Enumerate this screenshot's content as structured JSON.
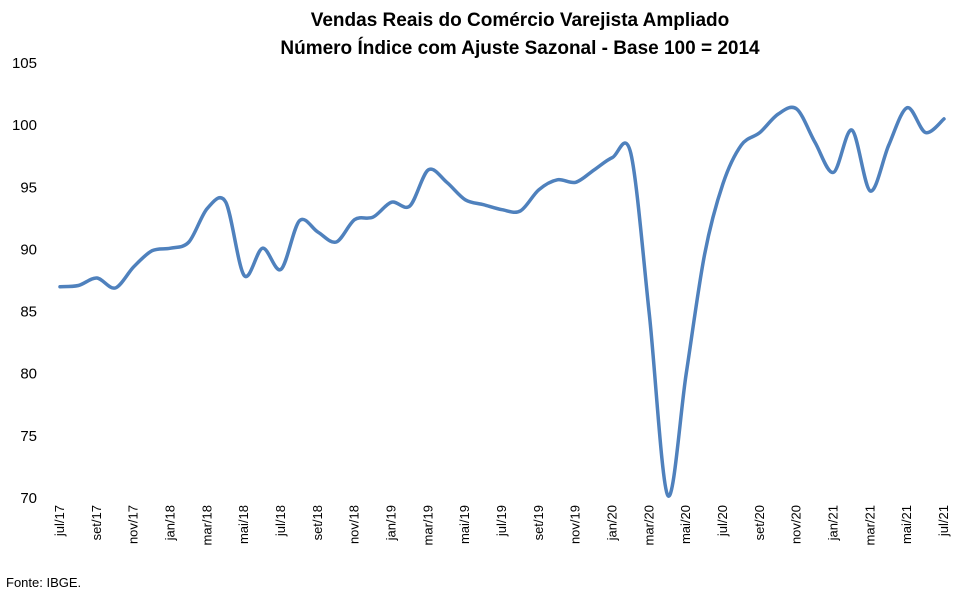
{
  "chart_data": {
    "type": "line",
    "title": "Vendas Reais do Comércio Varejista Ampliado",
    "subtitle": "Número Índice com Ajuste Sazonal - Base 100 = 2014",
    "xlabel": "",
    "ylabel": "",
    "ylim": [
      70,
      105
    ],
    "yticks": [
      70,
      75,
      80,
      85,
      90,
      95,
      100,
      105
    ],
    "grid": false,
    "legend": "none",
    "line_color": "#4f81bd",
    "x": [
      "jul/17",
      "ago/17",
      "set/17",
      "out/17",
      "nov/17",
      "dez/17",
      "jan/18",
      "fev/18",
      "mar/18",
      "abr/18",
      "mai/18",
      "jun/18",
      "jul/18",
      "ago/18",
      "set/18",
      "out/18",
      "nov/18",
      "dez/18",
      "jan/19",
      "fev/19",
      "mar/19",
      "abr/19",
      "mai/19",
      "jun/19",
      "jul/19",
      "ago/19",
      "set/19",
      "out/19",
      "nov/19",
      "dez/19",
      "jan/20",
      "fev/20",
      "mar/20",
      "abr/20",
      "mai/20",
      "jun/20",
      "jul/20",
      "ago/20",
      "set/20",
      "out/20",
      "nov/20",
      "dez/20",
      "jan/21",
      "fev/21",
      "mar/21",
      "abr/21",
      "mai/21",
      "jun/21",
      "jul/21"
    ],
    "x_tick_labels": [
      "jul/17",
      "set/17",
      "nov/17",
      "jan/18",
      "mar/18",
      "mai/18",
      "jul/18",
      "set/18",
      "nov/18",
      "jan/19",
      "mar/19",
      "mai/19",
      "jul/19",
      "set/19",
      "nov/19",
      "jan/20",
      "mar/20",
      "mai/20",
      "jul/20",
      "set/20",
      "nov/20",
      "jan/21",
      "mar/21",
      "mai/21",
      "jul/21"
    ],
    "series": [
      {
        "values": [
          87.0,
          87.1,
          87.7,
          86.9,
          88.6,
          89.9,
          90.1,
          90.6,
          93.3,
          93.8,
          87.9,
          90.1,
          88.4,
          92.3,
          91.4,
          90.6,
          92.4,
          92.6,
          93.8,
          93.5,
          96.4,
          95.4,
          94.0,
          93.6,
          93.2,
          93.1,
          94.8,
          95.6,
          95.4,
          96.4,
          97.4,
          97.7,
          84.8,
          70.2,
          80.0,
          89.6,
          95.3,
          98.4,
          99.4,
          100.9,
          101.3,
          98.6,
          96.2,
          99.6,
          94.7,
          98.4,
          101.4,
          99.4,
          100.5
        ]
      }
    ],
    "source": "Fonte: IBGE."
  }
}
